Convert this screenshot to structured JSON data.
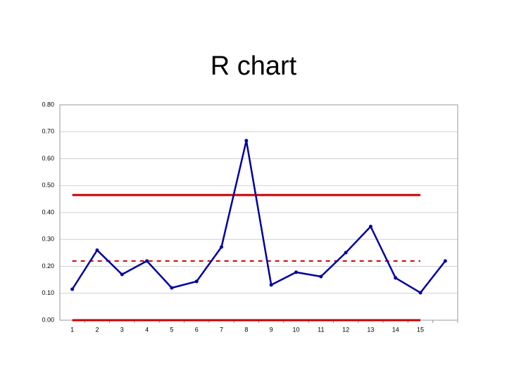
{
  "chart_data": {
    "type": "line",
    "title": "R chart",
    "categories": [
      "1",
      "2",
      "3",
      "4",
      "5",
      "6",
      "7",
      "8",
      "9",
      "10",
      "11",
      "12",
      "13",
      "14",
      "15",
      null
    ],
    "series": [
      {
        "color": "#0000a0",
        "values": [
          0.115,
          0.26,
          0.17,
          0.22,
          0.12,
          0.144,
          0.272,
          0.667,
          0.131,
          0.178,
          0.162,
          0.251,
          0.348,
          0.157,
          0.102,
          0.22
        ]
      }
    ],
    "limits": [
      {
        "value": 0.465,
        "color": "#cc0000",
        "style": "solid"
      },
      {
        "value": 0.22,
        "color": "#cc0000",
        "style": "dashed"
      },
      {
        "value": 0,
        "color": "#cc0000",
        "style": "solid"
      }
    ],
    "ylim": [
      0,
      0.8
    ],
    "yticks": [
      {
        "value": 0,
        "label": "0.00"
      },
      {
        "value": 0.1,
        "label": "0.10"
      },
      {
        "value": 0.2,
        "label": "0.20"
      },
      {
        "value": 0.3,
        "label": "0.30"
      },
      {
        "value": 0.4,
        "label": "0.40"
      },
      {
        "value": 0.5,
        "label": "0.50"
      },
      {
        "value": 0.6,
        "label": "0.60"
      },
      {
        "value": 0.7,
        "label": "0.70"
      },
      {
        "value": 0.8,
        "label": "0.80"
      }
    ],
    "grid": true
  }
}
